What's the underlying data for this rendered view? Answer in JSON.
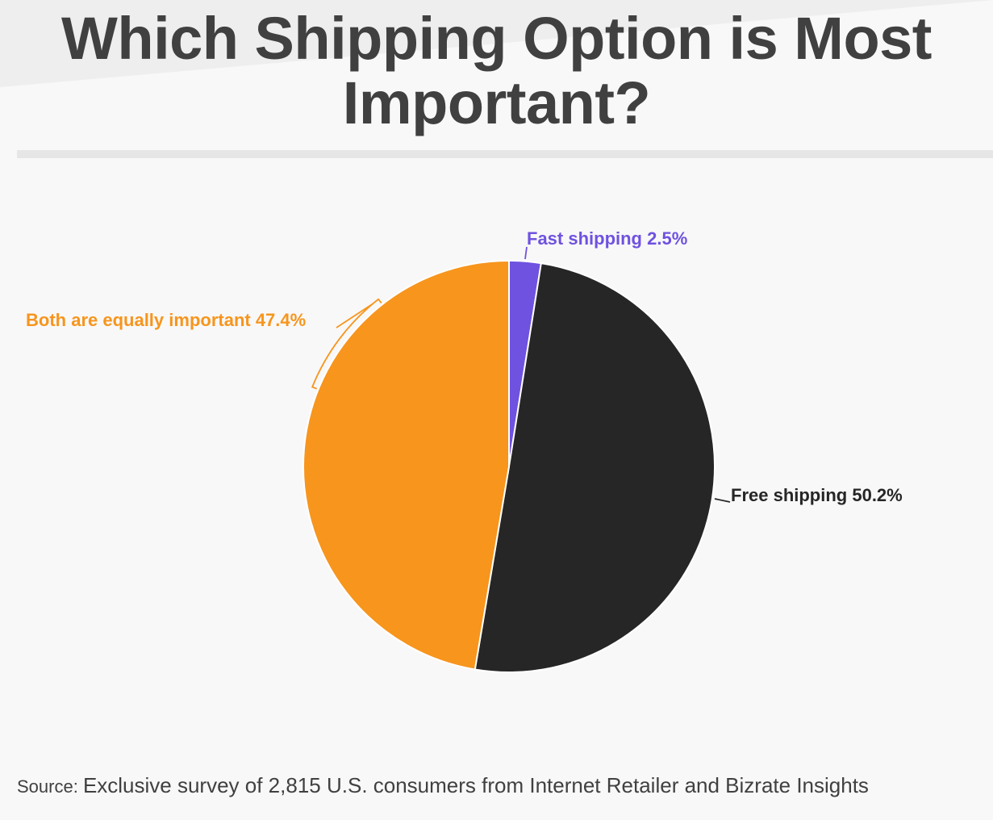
{
  "title": "Which Shipping Option is Most Important?",
  "source": {
    "prefix": "Source: ",
    "text": "Exclusive survey of 2,815 U.S. consumers from Internet Retailer and Bizrate Insights"
  },
  "colors": {
    "fast_shipping": "#6f52e0",
    "free_shipping": "#262626",
    "both": "#f7951d",
    "title": "#404040",
    "background": "#f8f8f8"
  },
  "chart_data": {
    "type": "pie",
    "start": "12 o'clock",
    "direction": "clockwise",
    "slices": [
      {
        "label": "Fast shipping 2.5%",
        "name": "Fast shipping",
        "value": 2.5,
        "color": "#6f52e0"
      },
      {
        "label": "Free shipping 50.2%",
        "name": "Free shipping",
        "value": 50.2,
        "color": "#262626"
      },
      {
        "label": "Both are equally important 47.4%",
        "name": "Both are equally important",
        "value": 47.4,
        "color": "#f7951d"
      }
    ]
  }
}
